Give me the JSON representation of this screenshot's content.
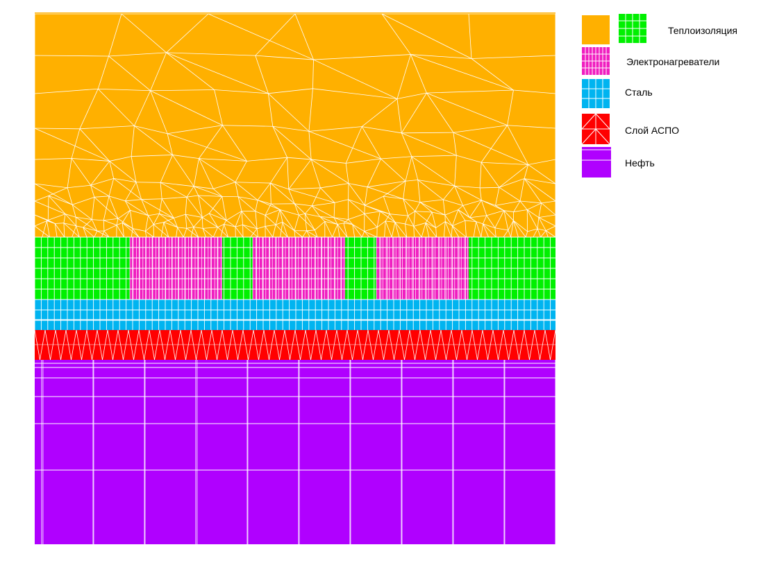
{
  "legend": {
    "insulation": "Теплоизоляция",
    "heaters": "Электронагреватели",
    "steel": "Сталь",
    "aspo": "Слой АСПО",
    "oil": "Нефть"
  },
  "colors": {
    "insulation_outer": "#FFB000",
    "insulation_inner": "#00F000",
    "heaters": "#F01EC0",
    "steel": "#00B4F0",
    "aspo": "#FF0000",
    "oil": "#B000FF",
    "mesh": "#FFFFFF"
  }
}
